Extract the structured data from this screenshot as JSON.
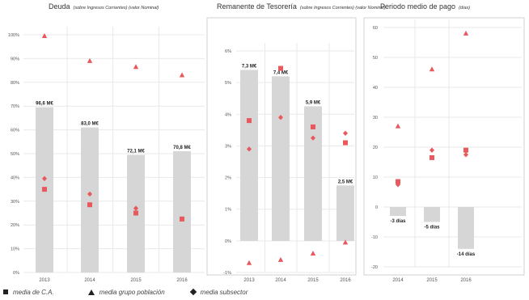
{
  "legend": {
    "media_ca": "media de C.A.",
    "media_grupo": "media grupo población",
    "media_subsector": "media subsector"
  },
  "colors": {
    "bar": "#d6d6d6",
    "marker": "#e8585d",
    "grid": "#e9e9e9",
    "panel_border": "#d0d0d0",
    "axis_text": "#555555"
  },
  "chart_data": [
    {
      "type": "bar",
      "title": "Deuda",
      "subtitle": "(sobre Ingresos Corrientes) (valor Nominal)",
      "categories": [
        "2013",
        "2014",
        "2015",
        "2016"
      ],
      "ylim": [
        0,
        100
      ],
      "yticks": [
        0,
        10,
        20,
        30,
        40,
        50,
        60,
        70,
        80,
        90,
        100
      ],
      "ytick_labels": [
        "0%",
        "10%",
        "20%",
        "30%",
        "40%",
        "50%",
        "60%",
        "70%",
        "80%",
        "90%",
        "100%"
      ],
      "series": [
        {
          "kind": "bar",
          "values": [
            69.5,
            61,
            49.5,
            51
          ],
          "labels": [
            "96,6 M€",
            "83,0 M€",
            "72,1 M€",
            "70,8 M€"
          ]
        },
        {
          "kind": "square",
          "values": [
            35,
            28.5,
            25,
            22.5
          ]
        },
        {
          "kind": "triangle",
          "values": [
            99.5,
            89,
            86.5,
            83
          ]
        },
        {
          "kind": "diamond",
          "values": [
            39.5,
            33,
            27,
            22.5
          ]
        }
      ]
    },
    {
      "type": "bar",
      "title": "Remanente de Tesorería",
      "subtitle": "(sobre Ingresos Corrientes) (valor Nominal)",
      "categories": [
        "2013",
        "2014",
        "2015",
        "2016"
      ],
      "ylim": [
        -1,
        6
      ],
      "yticks": [
        -1,
        0,
        1,
        2,
        3,
        4,
        5,
        6
      ],
      "ytick_labels": [
        "-1%",
        "0%",
        "1%",
        "2%",
        "3%",
        "4%",
        "5%",
        "6%"
      ],
      "series": [
        {
          "kind": "bar",
          "values": [
            5.4,
            5.2,
            4.25,
            1.75
          ],
          "labels": [
            "7,3 M€",
            "7,4 M€",
            "5,9 M€",
            "2,5 M€"
          ]
        },
        {
          "kind": "square",
          "values": [
            3.8,
            5.45,
            3.6,
            3.1
          ]
        },
        {
          "kind": "triangle",
          "values": [
            -0.7,
            -0.6,
            -0.4,
            -0.05
          ]
        },
        {
          "kind": "diamond",
          "values": [
            2.9,
            3.9,
            3.25,
            3.4
          ]
        }
      ]
    },
    {
      "type": "bar",
      "title": "Periodo medio de pago",
      "subtitle": "(días)",
      "categories": [
        "2014",
        "2015",
        "2016"
      ],
      "ylim": [
        -20,
        60
      ],
      "yticks": [
        -20,
        -10,
        0,
        10,
        20,
        30,
        40,
        50,
        60
      ],
      "ytick_labels": [
        "-20",
        "-10",
        "0",
        "10",
        "20",
        "30",
        "40",
        "50",
        "60"
      ],
      "series": [
        {
          "kind": "bar",
          "values": [
            -3,
            -5,
            -14
          ],
          "labels": [
            "-3 días",
            "-5 días",
            "-14 días"
          ]
        },
        {
          "kind": "square",
          "values": [
            8.5,
            16.5,
            19
          ]
        },
        {
          "kind": "triangle",
          "values": [
            27,
            46,
            58
          ]
        },
        {
          "kind": "diamond",
          "values": [
            7.5,
            19,
            17.5
          ]
        }
      ]
    }
  ]
}
